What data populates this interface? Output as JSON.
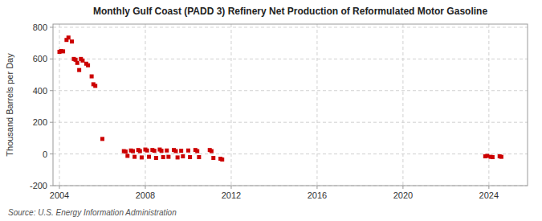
{
  "chart_data": {
    "type": "scatter",
    "title": "Monthly Gulf Coast (PADD 3) Refinery Net Production of Reformulated Motor Gasoline",
    "ylabel": "Thousand Barrels per Day",
    "source": "Source: U.S. Energy Information Administration",
    "color": "#cc0000",
    "marker": "square",
    "grid": true,
    "xlim": [
      2003.7,
      2025.8
    ],
    "ylim": [
      -200,
      820
    ],
    "xticks": [
      2004,
      2008,
      2012,
      2016,
      2020,
      2024
    ],
    "yticks": [
      -200,
      0,
      200,
      400,
      600,
      800
    ],
    "x": [
      2004.0,
      2004.08,
      2004.17,
      2004.33,
      2004.42,
      2004.58,
      2004.67,
      2004.75,
      2004.83,
      2004.92,
      2005.0,
      2005.08,
      2005.25,
      2005.33,
      2005.5,
      2005.58,
      2005.67,
      2006.0,
      2007.0,
      2007.08,
      2007.17,
      2007.33,
      2007.42,
      2007.5,
      2007.67,
      2007.75,
      2007.83,
      2008.0,
      2008.08,
      2008.17,
      2008.33,
      2008.42,
      2008.5,
      2008.67,
      2008.75,
      2008.83,
      2009.0,
      2009.08,
      2009.33,
      2009.42,
      2009.5,
      2009.67,
      2009.75,
      2010.0,
      2010.08,
      2010.33,
      2010.42,
      2010.5,
      2011.0,
      2011.08,
      2011.17,
      2011.5,
      2011.58,
      2023.83,
      2023.92,
      2024.08,
      2024.17,
      2024.5,
      2024.58
    ],
    "values": [
      645,
      650,
      648,
      720,
      735,
      710,
      600,
      595,
      575,
      530,
      600,
      590,
      570,
      560,
      490,
      440,
      430,
      95,
      18,
      15,
      -12,
      22,
      18,
      -18,
      25,
      18,
      -22,
      28,
      22,
      -18,
      25,
      20,
      -25,
      28,
      20,
      -20,
      22,
      -18,
      25,
      18,
      -22,
      20,
      -15,
      22,
      -20,
      25,
      18,
      -20,
      25,
      18,
      -25,
      -30,
      -35,
      -15,
      -12,
      -18,
      -20,
      -15,
      -18
    ]
  }
}
